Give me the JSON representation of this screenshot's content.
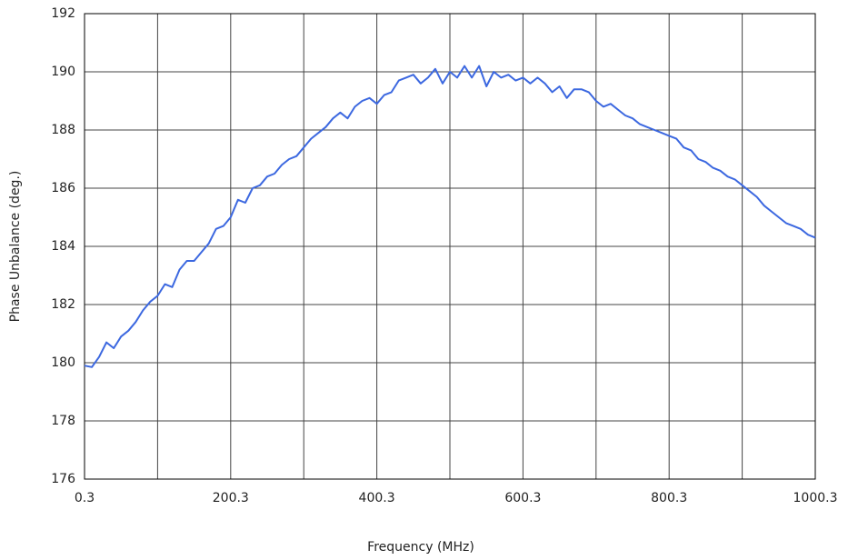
{
  "chart_data": {
    "type": "line",
    "xlabel": "Frequency (MHz)",
    "ylabel": "Phase Unbalance (deg.)",
    "x": [
      0.3,
      10.3,
      20.3,
      30.3,
      40.3,
      50.3,
      60.3,
      70.3,
      80.3,
      90.3,
      100.3,
      110.3,
      120.3,
      130.3,
      140.3,
      150.3,
      160.3,
      170.3,
      180.3,
      190.3,
      200.3,
      210.3,
      220.3,
      230.3,
      240.3,
      250.3,
      260.3,
      270.3,
      280.3,
      290.3,
      300.3,
      310.3,
      320.3,
      330.3,
      340.3,
      350.3,
      360.3,
      370.3,
      380.3,
      390.3,
      400.3,
      410.3,
      420.3,
      430.3,
      440.3,
      450.3,
      460.3,
      470.3,
      480.3,
      490.3,
      500.3,
      510.3,
      520.3,
      530.3,
      540.3,
      550.3,
      560.3,
      570.3,
      580.3,
      590.3,
      600.3,
      610.3,
      620.3,
      630.3,
      640.3,
      650.3,
      660.3,
      670.3,
      680.3,
      690.3,
      700.3,
      710.3,
      720.3,
      730.3,
      740.3,
      750.3,
      760.3,
      770.3,
      780.3,
      790.3,
      800.3,
      810.3,
      820.3,
      830.3,
      840.3,
      850.3,
      860.3,
      870.3,
      880.3,
      890.3,
      900.3,
      910.3,
      920.3,
      930.3,
      940.3,
      950.3,
      960.3,
      970.3,
      980.3,
      990.3,
      1000.3
    ],
    "series": [
      {
        "color": "#3c68e0",
        "values": [
          179.9,
          179.85,
          180.2,
          180.7,
          180.5,
          180.9,
          181.1,
          181.4,
          181.8,
          182.1,
          182.3,
          182.7,
          182.6,
          183.2,
          183.5,
          183.5,
          183.8,
          184.1,
          184.6,
          184.7,
          185.0,
          185.6,
          185.5,
          186.0,
          186.1,
          186.4,
          186.5,
          186.8,
          187.0,
          187.1,
          187.4,
          187.7,
          187.9,
          188.1,
          188.4,
          188.6,
          188.4,
          188.8,
          189.0,
          189.1,
          188.9,
          189.2,
          189.3,
          189.7,
          189.8,
          189.9,
          189.6,
          189.8,
          190.1,
          189.6,
          190.0,
          189.8,
          190.2,
          189.8,
          190.2,
          189.5,
          190.0,
          189.8,
          189.9,
          189.7,
          189.8,
          189.6,
          189.8,
          189.6,
          189.3,
          189.5,
          189.1,
          189.4,
          189.4,
          189.3,
          189.0,
          188.8,
          188.9,
          188.7,
          188.5,
          188.4,
          188.2,
          188.1,
          188.0,
          187.9,
          187.8,
          187.7,
          187.4,
          187.3,
          187.0,
          186.9,
          186.7,
          186.6,
          186.4,
          186.3,
          186.1,
          185.9,
          185.7,
          185.4,
          185.2,
          185.0,
          184.8,
          184.7,
          184.6,
          184.4,
          184.3
        ]
      }
    ],
    "xlim": [
      0.3,
      1000.3
    ],
    "xticks": [
      0.3,
      200.3,
      400.3,
      600.3,
      800.3,
      1000.3
    ],
    "xgrid_minor": [
      100.3,
      300.3,
      500.3,
      700.3,
      900.3
    ],
    "ylim": [
      176,
      192
    ],
    "yticks": [
      176,
      178,
      180,
      182,
      184,
      186,
      188,
      190,
      192
    ],
    "grid": true
  }
}
